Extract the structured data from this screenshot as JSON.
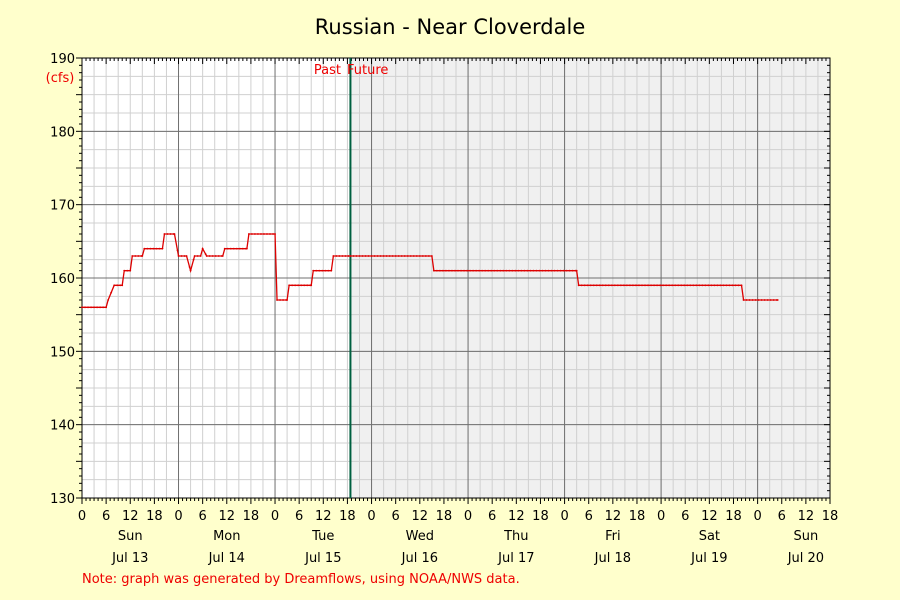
{
  "chart_data": {
    "type": "line",
    "title": "Russian - Near Cloverdale",
    "ylabel": "(cfs)",
    "ylim": [
      130,
      190
    ],
    "yticks": [
      130,
      140,
      150,
      160,
      170,
      180,
      190
    ],
    "xlim_hours": [
      0,
      186
    ],
    "hour_tick_labels": [
      "0",
      "6",
      "12",
      "18"
    ],
    "days": [
      {
        "weekday": "Sun",
        "date": "Jul 13"
      },
      {
        "weekday": "Mon",
        "date": "Jul 14"
      },
      {
        "weekday": "Tue",
        "date": "Jul 15"
      },
      {
        "weekday": "Wed",
        "date": "Jul 16"
      },
      {
        "weekday": "Thu",
        "date": "Jul 17"
      },
      {
        "weekday": "Fri",
        "date": "Jul 18"
      },
      {
        "weekday": "Sat",
        "date": "Jul 19"
      },
      {
        "weekday": "Sun",
        "date": "Jul 20"
      }
    ],
    "now_hour": 66.75,
    "past_label": "Past",
    "future_label": "Future",
    "grid": true,
    "series": [
      {
        "color": "#dd0000",
        "points": [
          [
            0,
            156
          ],
          [
            6,
            156
          ],
          [
            6.5,
            157
          ],
          [
            8,
            159
          ],
          [
            10,
            159
          ],
          [
            10.5,
            161
          ],
          [
            12,
            161
          ],
          [
            12.5,
            163
          ],
          [
            15,
            163
          ],
          [
            15.5,
            164
          ],
          [
            20,
            164
          ],
          [
            20.5,
            166
          ],
          [
            23,
            166
          ],
          [
            24,
            163
          ],
          [
            26,
            163
          ],
          [
            27,
            161
          ],
          [
            28,
            163
          ],
          [
            29.5,
            163
          ],
          [
            30,
            164
          ],
          [
            31,
            163
          ],
          [
            35,
            163
          ],
          [
            35.5,
            164
          ],
          [
            41,
            164
          ],
          [
            41.5,
            166
          ],
          [
            48,
            166
          ],
          [
            48.5,
            157
          ],
          [
            51,
            157
          ],
          [
            51.5,
            159
          ],
          [
            57,
            159
          ],
          [
            57.5,
            161
          ],
          [
            62,
            161
          ],
          [
            62.5,
            163
          ],
          [
            66.75,
            163
          ],
          [
            87,
            163
          ],
          [
            87.5,
            161
          ],
          [
            123,
            161
          ],
          [
            123.5,
            159
          ],
          [
            164,
            159
          ],
          [
            164.5,
            157
          ],
          [
            173,
            157
          ]
        ]
      }
    ]
  },
  "footnote": "Note: graph was generated by Dreamflows, using NOAA/NWS data.",
  "colors": {
    "background": "#ffffcc",
    "past_area": "#ffffff",
    "future_area": "#f0f0f0",
    "series": "#dd0000",
    "now_line": "#006040",
    "label_red": "#ee0000"
  }
}
